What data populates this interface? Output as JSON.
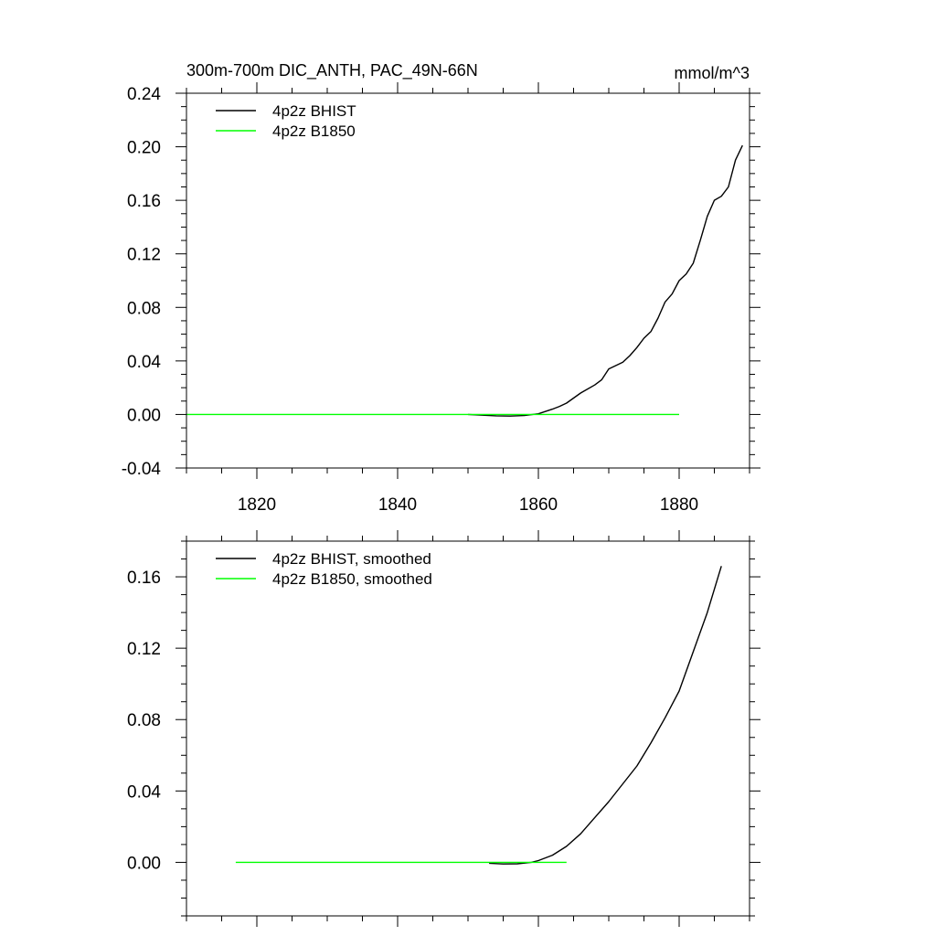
{
  "chart_data": [
    {
      "type": "line",
      "title": "300m-700m DIC_ANTH, PAC_49N-66N",
      "units": "mmol/m^3",
      "xlim": [
        1810,
        1890
      ],
      "ylim": [
        -0.04,
        0.24
      ],
      "xticks": [
        1820,
        1840,
        1860,
        1880
      ],
      "xtick_labels": [
        "1820",
        "1840",
        "1860",
        "1880"
      ],
      "yticks": [
        -0.04,
        0.0,
        0.04,
        0.08,
        0.12,
        0.16,
        0.2,
        0.24
      ],
      "ytick_labels": [
        "-0.04",
        "0.00",
        "0.04",
        "0.08",
        "0.12",
        "0.16",
        "0.20",
        "0.24"
      ],
      "legend_position": "top-left",
      "series": [
        {
          "name": "4p2z BHIST",
          "color": "#000000",
          "x": [
            1850,
            1852,
            1854,
            1856,
            1858,
            1860,
            1862,
            1863,
            1864,
            1866,
            1868,
            1869,
            1870,
            1872,
            1873,
            1874,
            1875,
            1876,
            1877,
            1878,
            1879,
            1880,
            1881,
            1882,
            1883,
            1884,
            1885,
            1886,
            1887,
            1888,
            1889
          ],
          "y": [
            0.0,
            -0.0005,
            -0.001,
            -0.0012,
            -0.0008,
            0.0005,
            0.004,
            0.006,
            0.0085,
            0.016,
            0.022,
            0.026,
            0.034,
            0.039,
            0.044,
            0.05,
            0.057,
            0.062,
            0.072,
            0.084,
            0.09,
            0.1,
            0.105,
            0.113,
            0.13,
            0.148,
            0.16,
            0.163,
            0.17,
            0.19,
            0.201
          ]
        },
        {
          "name": "4p2z B1850",
          "color": "#00ff00",
          "x": [
            1810,
            1880
          ],
          "y": [
            0.0,
            0.0
          ]
        }
      ]
    },
    {
      "type": "line",
      "title": "",
      "xlim": [
        1810,
        1890
      ],
      "ylim": [
        -0.03,
        0.18
      ],
      "xticks": [
        1820,
        1840,
        1860,
        1880
      ],
      "yticks": [
        0.0,
        0.04,
        0.08,
        0.12,
        0.16
      ],
      "ytick_labels": [
        "0.00",
        "0.04",
        "0.08",
        "0.12",
        "0.16"
      ],
      "legend_position": "top-left",
      "series": [
        {
          "name": "4p2z BHIST, smoothed",
          "color": "#000000",
          "x": [
            1853,
            1855,
            1857,
            1859,
            1860,
            1862,
            1864,
            1866,
            1868,
            1870,
            1872,
            1874,
            1876,
            1878,
            1880,
            1882,
            1884,
            1886
          ],
          "y": [
            -0.0005,
            -0.0009,
            -0.0008,
            0.0,
            0.001,
            0.004,
            0.009,
            0.016,
            0.025,
            0.034,
            0.044,
            0.054,
            0.067,
            0.081,
            0.096,
            0.118,
            0.14,
            0.166
          ]
        },
        {
          "name": "4p2z B1850, smoothed",
          "color": "#00ff00",
          "x": [
            1817,
            1864
          ],
          "y": [
            0.0,
            0.0
          ]
        }
      ]
    }
  ]
}
